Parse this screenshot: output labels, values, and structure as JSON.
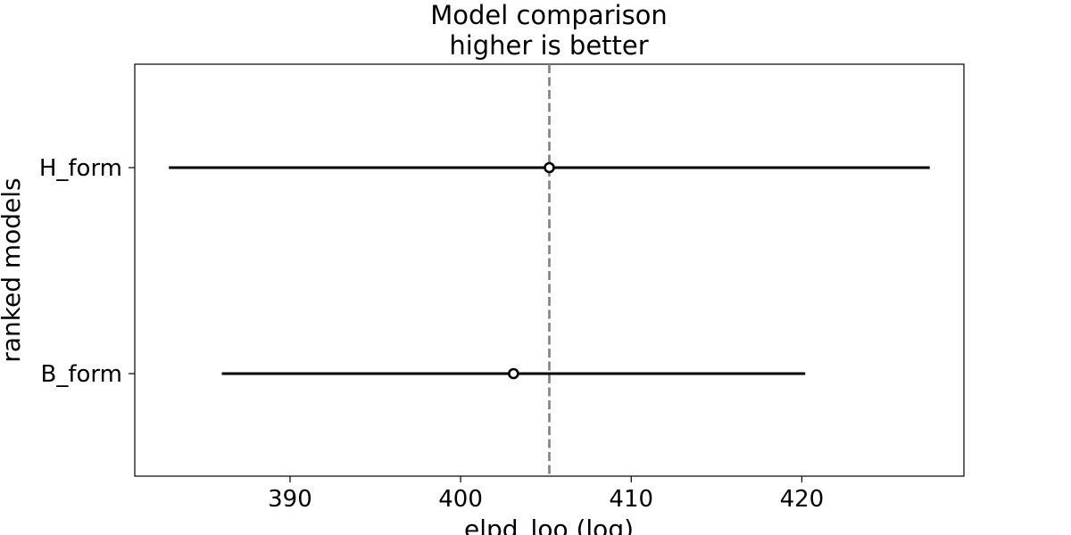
{
  "chart_data": {
    "type": "scatter",
    "title": "Model comparison",
    "subtitle": "higher is better",
    "xlabel": "elpd_loo (log)",
    "ylabel": "ranked models",
    "xlim": [
      380.9,
      429.5
    ],
    "xticks": [
      390,
      400,
      410,
      420
    ],
    "xtick_labels": [
      "390",
      "400",
      "410",
      "420"
    ],
    "reference_line": {
      "x": 405.2,
      "style": "dashed",
      "color": "#808080"
    },
    "series": [
      {
        "label": "H_form",
        "elpd": 405.2,
        "interval": [
          382.9,
          427.5
        ]
      },
      {
        "label": "B_form",
        "elpd": 403.1,
        "interval": [
          386.0,
          420.2
        ]
      }
    ],
    "grid": false,
    "colors": {
      "interval": "#000000",
      "marker_face": "#ffffff",
      "marker_edge": "#000000",
      "reference": "#808080"
    }
  }
}
